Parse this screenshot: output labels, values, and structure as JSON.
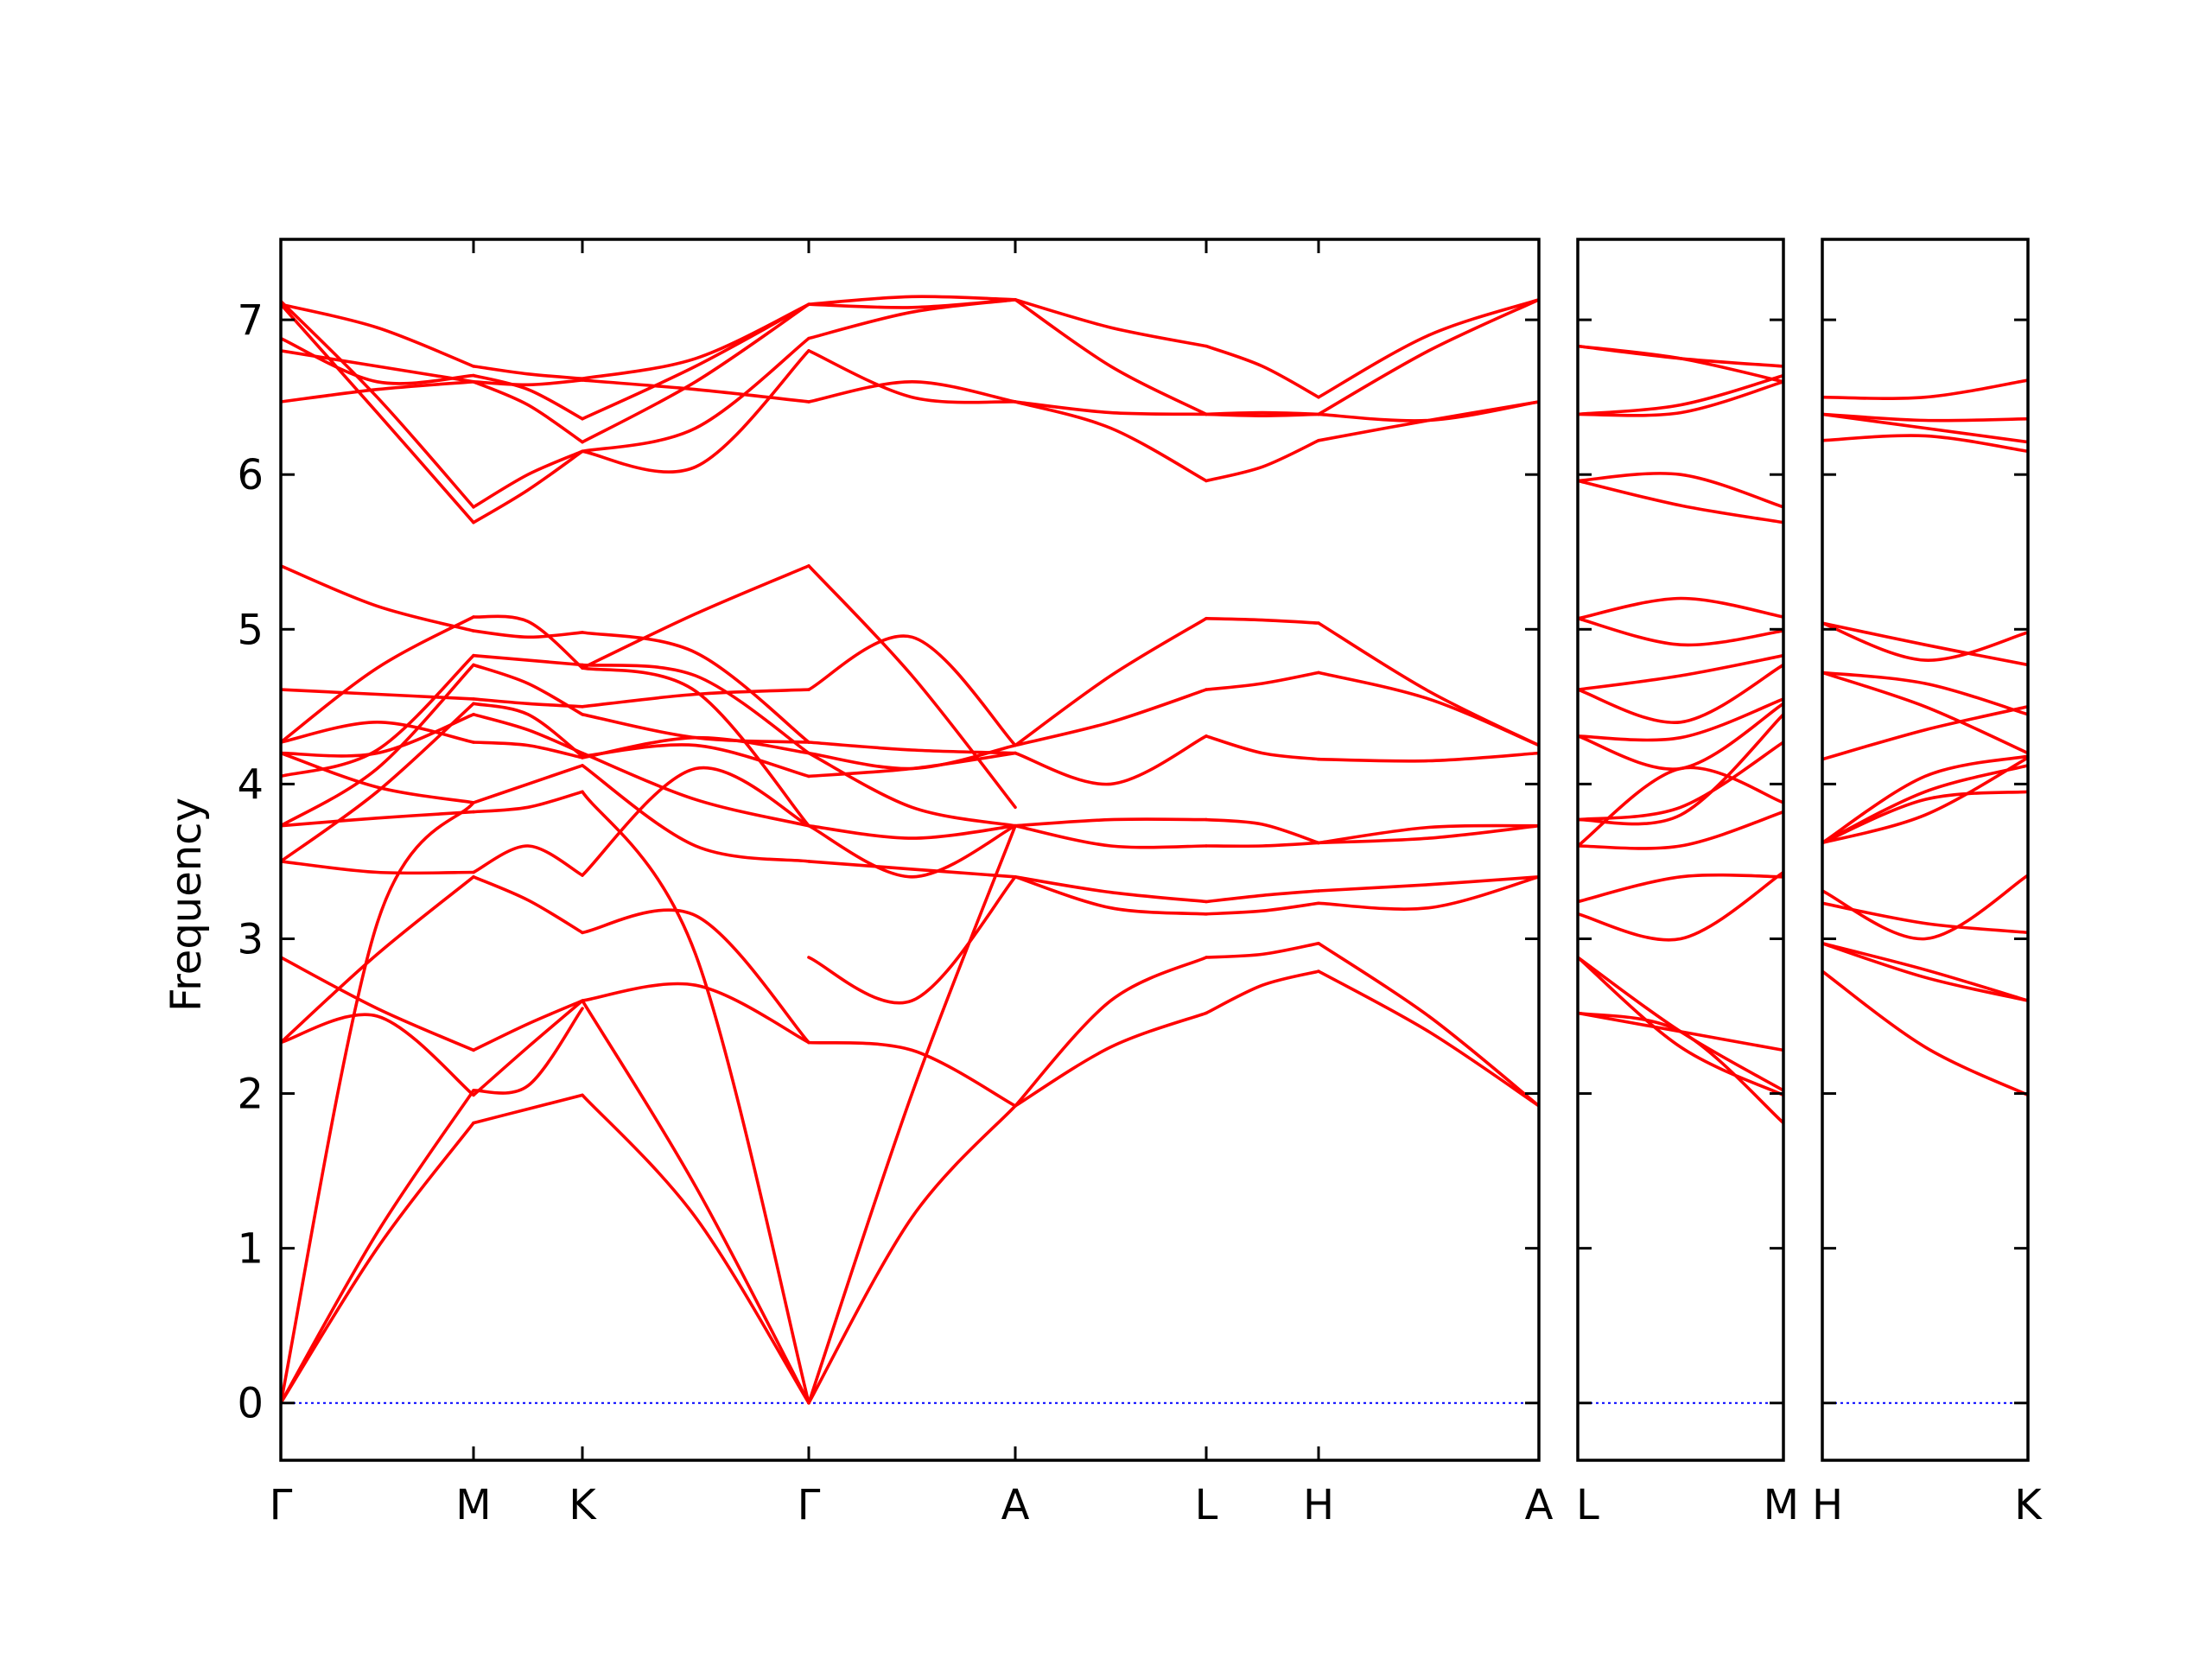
{
  "chart_data": {
    "type": "line",
    "ylabel": "Frequency",
    "xlabel": "",
    "ylim": [
      -0.37,
      7.52
    ],
    "yticks": [
      "0",
      "1",
      "2",
      "3",
      "4",
      "5",
      "6",
      "7"
    ],
    "grid": false,
    "legend": "none",
    "band_color": "#ff0000",
    "zero_line_color": "#0000ff",
    "panels": [
      {
        "xticks": [
          "Γ",
          "M",
          "K",
          "Γ",
          "A",
          "L",
          "H",
          "A"
        ],
        "segments": [
          {
            "from": "Γ",
            "to": "M",
            "bands": [
              [
                0,
                1.0,
                1.81
              ],
              [
                0,
                1.1,
                2.02
              ],
              [
                0,
                3.1,
                3.88
              ],
              [
                2.33,
                2.5,
                1.99
              ],
              [
                2.33,
                2.9,
                3.4
              ],
              [
                2.88,
                2.55,
                2.28
              ],
              [
                3.5,
                3.43,
                3.43
              ],
              [
                3.5,
                3.95,
                4.52
              ],
              [
                3.73,
                3.78,
                3.82
              ],
              [
                3.73,
                4.1,
                4.77
              ],
              [
                4.05,
                4.22,
                4.83
              ],
              [
                4.2,
                3.98,
                3.88
              ],
              [
                4.2,
                4.2,
                4.45
              ],
              [
                4.27,
                4.4,
                4.27
              ],
              [
                4.27,
                4.75,
                5.08
              ],
              [
                4.61,
                4.58,
                4.55
              ],
              [
                5.41,
                5.15,
                4.99
              ],
              [
                6.47,
                6.55,
                6.6
              ],
              [
                6.8,
                6.7,
                6.6
              ],
              [
                6.88,
                6.6,
                6.64
              ],
              [
                7.1,
                6.4,
                5.69
              ],
              [
                7.12,
                6.5,
                5.79
              ],
              [
                7.1,
                6.95,
                6.7
              ]
            ]
          },
          {
            "from": "M",
            "to": "K",
            "bands": [
              [
                1.81,
                1.9,
                1.99
              ],
              [
                2.02,
                2.05,
                2.55
              ],
              [
                2.28,
                2.45,
                2.6
              ],
              [
                1.99,
                2.3,
                2.6
              ],
              [
                3.4,
                3.25,
                3.04
              ],
              [
                3.43,
                3.6,
                3.41
              ],
              [
                3.82,
                3.85,
                3.95
              ],
              [
                3.88,
                4.0,
                4.12
              ],
              [
                4.45,
                4.35,
                4.2
              ],
              [
                4.27,
                4.25,
                4.17
              ],
              [
                4.52,
                4.45,
                4.18
              ],
              [
                4.77,
                4.65,
                4.45
              ],
              [
                4.83,
                4.8,
                4.77
              ],
              [
                4.55,
                4.52,
                4.5
              ],
              [
                4.99,
                4.95,
                4.98
              ],
              [
                5.08,
                5.05,
                4.75
              ],
              [
                5.69,
                5.9,
                6.15
              ],
              [
                5.79,
                6.0,
                6.15
              ],
              [
                6.6,
                6.58,
                6.61
              ],
              [
                6.6,
                6.45,
                6.21
              ],
              [
                6.64,
                6.55,
                6.36
              ],
              [
                6.7,
                6.65,
                6.62
              ]
            ]
          },
          {
            "from": "K",
            "to": "Γ",
            "bands": [
              [
                1.99,
                1.2,
                0
              ],
              [
                2.6,
                1.4,
                0
              ],
              [
                2.6,
                2.7,
                2.33
              ],
              [
                3.04,
                3.15,
                2.33
              ],
              [
                3.41,
                4.1,
                3.73
              ],
              [
                3.95,
                2.9,
                0
              ],
              [
                4.12,
                3.6,
                3.5
              ],
              [
                4.18,
                4.25,
                4.05
              ],
              [
                4.2,
                3.9,
                3.73
              ],
              [
                4.17,
                4.3,
                4.2
              ],
              [
                4.45,
                4.3,
                4.27
              ],
              [
                4.5,
                4.58,
                4.61
              ],
              [
                4.75,
                4.6,
                3.73
              ],
              [
                4.77,
                4.7,
                4.2
              ],
              [
                4.98,
                4.85,
                4.27
              ],
              [
                4.75,
                5.1,
                5.41
              ],
              [
                6.15,
                6.05,
                6.8
              ],
              [
                6.15,
                6.3,
                6.88
              ],
              [
                6.21,
                6.6,
                7.1
              ],
              [
                6.36,
                6.7,
                7.1
              ],
              [
                6.61,
                6.55,
                6.47
              ],
              [
                6.62,
                6.75,
                7.1
              ]
            ]
          },
          {
            "from": "Γ",
            "to": "A",
            "bands": [
              [
                0,
                1.2,
                1.92
              ],
              [
                0,
                2.0,
                3.73
              ],
              [
                2.33,
                2.28,
                1.92
              ],
              [
                2.88,
                2.6,
                3.4
              ],
              [
                3.5,
                3.45,
                3.4
              ],
              [
                3.73,
                3.4,
                3.73
              ],
              [
                3.73,
                3.65,
                3.73
              ],
              [
                4.05,
                4.1,
                4.2
              ],
              [
                4.2,
                3.85,
                3.73
              ],
              [
                4.2,
                4.1,
                4.25
              ],
              [
                4.27,
                4.22,
                4.2
              ],
              [
                4.61,
                4.95,
                4.25
              ],
              [
                5.41,
                4.7,
                3.85
              ],
              [
                6.47,
                6.6,
                6.47
              ],
              [
                6.8,
                6.5,
                6.47
              ],
              [
                6.88,
                7.05,
                7.13
              ],
              [
                7.1,
                7.15,
                7.13
              ],
              [
                7.1,
                7.08,
                7.13
              ]
            ]
          },
          {
            "from": "A",
            "to": "L",
            "bands": [
              [
                1.92,
                2.3,
                2.52
              ],
              [
                1.92,
                2.6,
                2.88
              ],
              [
                3.4,
                3.2,
                3.16
              ],
              [
                3.4,
                3.3,
                3.24
              ],
              [
                3.73,
                3.6,
                3.6
              ],
              [
                3.73,
                3.77,
                3.77
              ],
              [
                4.2,
                4.0,
                4.31
              ],
              [
                4.25,
                4.4,
                4.61
              ],
              [
                4.25,
                4.7,
                5.07
              ],
              [
                6.47,
                6.3,
                5.96
              ],
              [
                6.47,
                6.4,
                6.39
              ],
              [
                7.13,
                6.7,
                6.39
              ],
              [
                7.13,
                6.95,
                6.83
              ]
            ]
          },
          {
            "from": "L",
            "to": "H",
            "bands": [
              [
                2.52,
                2.7,
                2.79
              ],
              [
                2.88,
                2.9,
                2.97
              ],
              [
                3.16,
                3.18,
                3.23
              ],
              [
                3.24,
                3.28,
                3.31
              ],
              [
                3.6,
                3.6,
                3.62
              ],
              [
                3.77,
                3.74,
                3.62
              ],
              [
                4.31,
                4.2,
                4.16
              ],
              [
                4.61,
                4.65,
                4.72
              ],
              [
                5.07,
                5.06,
                5.04
              ],
              [
                5.96,
                6.05,
                6.22
              ],
              [
                6.39,
                6.38,
                6.39
              ],
              [
                6.39,
                6.4,
                6.39
              ],
              [
                6.83,
                6.7,
                6.5
              ]
            ]
          },
          {
            "from": "H",
            "to": "A",
            "bands": [
              [
                2.79,
                2.4,
                1.92
              ],
              [
                2.97,
                2.5,
                1.92
              ],
              [
                3.23,
                3.2,
                3.4
              ],
              [
                3.31,
                3.35,
                3.4
              ],
              [
                3.62,
                3.65,
                3.73
              ],
              [
                3.62,
                3.72,
                3.73
              ],
              [
                4.16,
                4.15,
                4.2
              ],
              [
                4.72,
                4.55,
                4.25
              ],
              [
                5.04,
                4.6,
                4.25
              ],
              [
                6.22,
                6.35,
                6.47
              ],
              [
                6.39,
                6.35,
                6.47
              ],
              [
                6.39,
                6.8,
                7.13
              ],
              [
                6.5,
                6.9,
                7.13
              ]
            ]
          }
        ]
      },
      {
        "xticks": [
          "L",
          "M"
        ],
        "segments": [
          {
            "from": "L",
            "to": "M",
            "bands": [
              [
                2.52,
                2.4,
                1.81
              ],
              [
                2.52,
                2.4,
                2.28
              ],
              [
                2.88,
                2.3,
                1.99
              ],
              [
                2.88,
                2.4,
                2.02
              ],
              [
                3.16,
                3.0,
                3.43
              ],
              [
                3.24,
                3.4,
                3.4
              ],
              [
                3.6,
                4.1,
                3.88
              ],
              [
                3.6,
                3.6,
                3.82
              ],
              [
                3.77,
                3.8,
                4.45
              ],
              [
                3.77,
                3.85,
                4.27
              ],
              [
                4.31,
                4.1,
                4.52
              ],
              [
                4.31,
                4.3,
                4.55
              ],
              [
                4.61,
                4.4,
                4.77
              ],
              [
                4.61,
                4.7,
                4.83
              ],
              [
                5.07,
                5.2,
                5.08
              ],
              [
                5.07,
                4.9,
                4.99
              ],
              [
                5.96,
                6.0,
                5.79
              ],
              [
                5.96,
                5.8,
                5.69
              ],
              [
                6.39,
                6.4,
                6.6
              ],
              [
                6.39,
                6.45,
                6.64
              ],
              [
                6.83,
                6.75,
                6.7
              ],
              [
                6.83,
                6.75,
                6.6
              ]
            ]
          }
        ]
      },
      {
        "xticks": [
          "H",
          "K"
        ],
        "segments": [
          {
            "from": "H",
            "to": "K",
            "bands": [
              [
                2.79,
                2.3,
                1.99
              ],
              [
                2.97,
                2.75,
                2.6
              ],
              [
                2.97,
                2.8,
                2.6
              ],
              [
                3.23,
                3.1,
                3.04
              ],
              [
                3.31,
                3.0,
                3.41
              ],
              [
                3.62,
                3.9,
                3.95
              ],
              [
                3.62,
                3.95,
                4.12
              ],
              [
                3.62,
                4.05,
                4.18
              ],
              [
                3.62,
                3.8,
                4.17
              ],
              [
                4.16,
                4.35,
                4.5
              ],
              [
                4.72,
                4.5,
                4.2
              ],
              [
                4.72,
                4.65,
                4.45
              ],
              [
                5.04,
                4.9,
                4.77
              ],
              [
                5.04,
                4.8,
                4.98
              ],
              [
                6.22,
                6.25,
                6.15
              ],
              [
                6.39,
                6.3,
                6.21
              ],
              [
                6.39,
                6.35,
                6.36
              ],
              [
                6.5,
                6.5,
                6.61
              ]
            ]
          }
        ]
      }
    ]
  }
}
